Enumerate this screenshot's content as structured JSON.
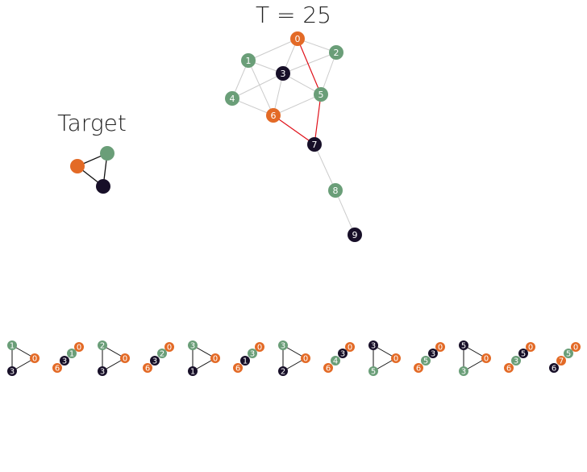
{
  "title": "T = 25",
  "target": {
    "title": "Target",
    "nodes": [
      {
        "id": "t0",
        "color": "#e36a26"
      },
      {
        "id": "t1",
        "color": "#6a9e78"
      },
      {
        "id": "t2",
        "color": "#170f28"
      }
    ],
    "edges": [
      [
        "t0",
        "t1"
      ],
      [
        "t0",
        "t2"
      ],
      [
        "t1",
        "t2"
      ]
    ]
  },
  "colors": {
    "orange": "#e36a26",
    "green": "#6a9e78",
    "dark": "#170f28",
    "red": "#e0121b",
    "edge": "#cccccc",
    "label": "#ffffff"
  },
  "graph": {
    "nodes": [
      {
        "id": "0",
        "label": "0",
        "color": "orange"
      },
      {
        "id": "1",
        "label": "1",
        "color": "green"
      },
      {
        "id": "2",
        "label": "2",
        "color": "green"
      },
      {
        "id": "3",
        "label": "3",
        "color": "dark"
      },
      {
        "id": "4",
        "label": "4",
        "color": "green"
      },
      {
        "id": "5",
        "label": "5",
        "color": "green"
      },
      {
        "id": "6",
        "label": "6",
        "color": "orange"
      },
      {
        "id": "7",
        "label": "7",
        "color": "dark"
      },
      {
        "id": "8",
        "label": "8",
        "color": "green"
      },
      {
        "id": "9",
        "label": "9",
        "color": "dark"
      }
    ],
    "edges": [
      {
        "s": "0",
        "t": "1"
      },
      {
        "s": "0",
        "t": "2"
      },
      {
        "s": "0",
        "t": "3"
      },
      {
        "s": "0",
        "t": "5",
        "highlight": true
      },
      {
        "s": "1",
        "t": "3"
      },
      {
        "s": "1",
        "t": "4"
      },
      {
        "s": "1",
        "t": "6"
      },
      {
        "s": "2",
        "t": "3"
      },
      {
        "s": "2",
        "t": "5"
      },
      {
        "s": "3",
        "t": "4"
      },
      {
        "s": "3",
        "t": "5"
      },
      {
        "s": "3",
        "t": "6"
      },
      {
        "s": "4",
        "t": "6"
      },
      {
        "s": "5",
        "t": "6"
      },
      {
        "s": "5",
        "t": "7",
        "highlight": true
      },
      {
        "s": "6",
        "t": "7",
        "highlight": true
      },
      {
        "s": "7",
        "t": "8"
      },
      {
        "s": "8",
        "t": "9"
      }
    ]
  },
  "matches": [
    {
      "style": "triangle",
      "nodes": [
        {
          "label": "1",
          "color": "green"
        },
        {
          "label": "0",
          "color": "orange"
        },
        {
          "label": "3",
          "color": "dark"
        }
      ]
    },
    {
      "style": "diagonal",
      "nodes": [
        {
          "label": "0",
          "color": "orange"
        },
        {
          "label": "1",
          "color": "green"
        },
        {
          "label": "3",
          "color": "dark"
        },
        {
          "label": "6",
          "color": "orange"
        }
      ]
    },
    {
      "style": "triangle",
      "nodes": [
        {
          "label": "2",
          "color": "green"
        },
        {
          "label": "0",
          "color": "orange"
        },
        {
          "label": "3",
          "color": "dark"
        }
      ]
    },
    {
      "style": "diagonal",
      "nodes": [
        {
          "label": "0",
          "color": "orange"
        },
        {
          "label": "2",
          "color": "green"
        },
        {
          "label": "3",
          "color": "dark"
        },
        {
          "label": "6",
          "color": "orange"
        }
      ]
    },
    {
      "style": "triangle",
      "nodes": [
        {
          "label": "3",
          "color": "green"
        },
        {
          "label": "0",
          "color": "orange"
        },
        {
          "label": "1",
          "color": "dark"
        }
      ]
    },
    {
      "style": "diagonal",
      "nodes": [
        {
          "label": "0",
          "color": "orange"
        },
        {
          "label": "3",
          "color": "green"
        },
        {
          "label": "1",
          "color": "dark"
        },
        {
          "label": "6",
          "color": "orange"
        }
      ]
    },
    {
      "style": "triangle",
      "nodes": [
        {
          "label": "3",
          "color": "green"
        },
        {
          "label": "0",
          "color": "orange"
        },
        {
          "label": "2",
          "color": "dark"
        }
      ]
    },
    {
      "style": "diagonal",
      "nodes": [
        {
          "label": "0",
          "color": "orange"
        },
        {
          "label": "3",
          "color": "dark"
        },
        {
          "label": "4",
          "color": "green"
        },
        {
          "label": "6",
          "color": "orange"
        }
      ]
    },
    {
      "style": "triangle",
      "nodes": [
        {
          "label": "3",
          "color": "dark"
        },
        {
          "label": "0",
          "color": "orange"
        },
        {
          "label": "5",
          "color": "green"
        }
      ]
    },
    {
      "style": "diagonal",
      "nodes": [
        {
          "label": "0",
          "color": "orange"
        },
        {
          "label": "3",
          "color": "dark"
        },
        {
          "label": "5",
          "color": "green"
        },
        {
          "label": "6",
          "color": "orange"
        }
      ]
    },
    {
      "style": "triangle",
      "nodes": [
        {
          "label": "5",
          "color": "dark"
        },
        {
          "label": "0",
          "color": "orange"
        },
        {
          "label": "3",
          "color": "green"
        }
      ]
    },
    {
      "style": "diagonal",
      "nodes": [
        {
          "label": "0",
          "color": "orange"
        },
        {
          "label": "5",
          "color": "dark"
        },
        {
          "label": "3",
          "color": "green"
        },
        {
          "label": "6",
          "color": "orange"
        }
      ]
    },
    {
      "style": "diagonal",
      "nodes": [
        {
          "label": "0",
          "color": "orange"
        },
        {
          "label": "5",
          "color": "green"
        },
        {
          "label": "7",
          "color": "orange"
        },
        {
          "label": "6",
          "color": "dark"
        }
      ]
    }
  ]
}
